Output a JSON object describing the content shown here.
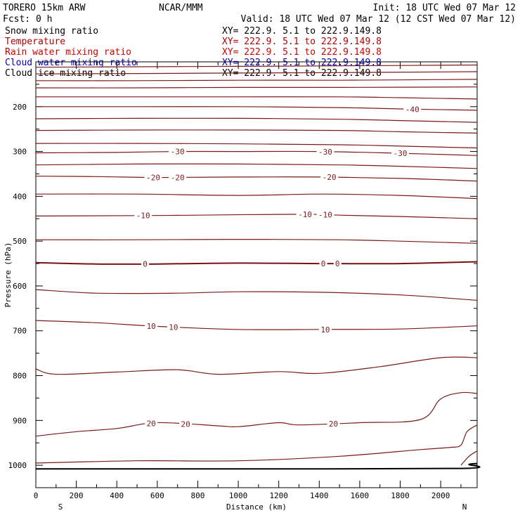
{
  "header": {
    "model": "TORERO  15km ARW",
    "center": "NCAR/MMM",
    "init": "Init: 18 UTC Wed 07 Mar 12",
    "fcst": "Fcst:    0 h",
    "valid": "Valid: 18 UTC Wed 07 Mar 12 (12 CST Wed 07 Mar 12)"
  },
  "legend": [
    {
      "label": "Snow mixing ratio",
      "xy": "XY= 222.9.  5.1 to 222.9.149.8",
      "color": "#000000"
    },
    {
      "label": "Temperature",
      "xy": "XY= 222.9.  5.1 to 222.9.149.8",
      "color": "#b00000"
    },
    {
      "label": "Rain water mixing ratio",
      "xy": "XY= 222.9.  5.1 to 222.9.149.8",
      "color": "#d00000"
    },
    {
      "label": "Cloud water mixing ratio",
      "xy": "XY= 222.9.  5.1 to 222.9.149.8",
      "color": "#0000c0"
    },
    {
      "label": "Cloud ice mixing ratio",
      "xy": "XY= 222.9.  5.1 to 222.9.149.8",
      "color": "#000000"
    }
  ],
  "colors": {
    "contour": "#7a1a1a",
    "zero_contour": "#7a1010",
    "ground": "#000000",
    "axes": "#000000"
  },
  "chart_data": {
    "type": "line",
    "title": "",
    "xlabel": "Distance (km)",
    "ylabel": "Pressure (hPa)",
    "xlim": [
      0,
      2180
    ],
    "ylim": [
      1050,
      100
    ],
    "x_ticks": [
      0,
      200,
      400,
      600,
      800,
      1000,
      1200,
      1400,
      1600,
      1800,
      2000
    ],
    "y_ticks": [
      200,
      300,
      400,
      500,
      600,
      700,
      800,
      900,
      1000
    ],
    "x_endpoint_labels": {
      "left": "S",
      "right": "N"
    },
    "series": [
      {
        "x": [
          0,
          500,
          1000,
          1500,
          2180
        ],
        "y": [
          112,
          111,
          110,
          109,
          107
        ]
      },
      {
        "x": [
          0,
          500,
          1000,
          1500,
          2180
        ],
        "y": [
          127,
          126,
          125,
          124,
          122
        ]
      },
      {
        "x": [
          0,
          500,
          1000,
          1500,
          2180
        ],
        "y": [
          142,
          142,
          141,
          141,
          139
        ]
      },
      {
        "x": [
          0,
          500,
          1000,
          1500,
          2180
        ],
        "y": [
          158,
          158,
          157,
          157,
          156
        ]
      },
      {
        "x": [
          0,
          500,
          1000,
          1500,
          1800,
          2180
        ],
        "y": [
          178,
          178,
          178,
          178,
          180,
          183
        ]
      },
      {
        "x": [
          0,
          500,
          1000,
          1500,
          1800,
          2180
        ],
        "y": [
          200,
          200,
          200,
          202,
          205,
          208
        ],
        "labels": [
          {
            "x": 1860,
            "text": "-40"
          }
        ]
      },
      {
        "x": [
          0,
          500,
          1000,
          1500,
          1800,
          2180
        ],
        "y": [
          227,
          226,
          226,
          228,
          231,
          235
        ]
      },
      {
        "x": [
          0,
          500,
          1000,
          1500,
          1800,
          2180
        ],
        "y": [
          253,
          252,
          252,
          253,
          256,
          259
        ]
      },
      {
        "x": [
          0,
          500,
          1000,
          1500,
          1800,
          2180
        ],
        "y": [
          282,
          282,
          283,
          285,
          288,
          292
        ]
      },
      {
        "x": [
          0,
          400,
          700,
          1000,
          1400,
          1800,
          2180
        ],
        "y": [
          303,
          302,
          300,
          300,
          300,
          304,
          309
        ],
        "labels": [
          {
            "x": 700,
            "text": "-30"
          },
          {
            "x": 1430,
            "text": "-30"
          },
          {
            "x": 1800,
            "text": "-30"
          }
        ]
      },
      {
        "x": [
          0,
          500,
          1000,
          1500,
          1800,
          2180
        ],
        "y": [
          330,
          328,
          328,
          330,
          333,
          338
        ]
      },
      {
        "x": [
          0,
          300,
          600,
          1000,
          1400,
          1800,
          2180
        ],
        "y": [
          355,
          356,
          358,
          357,
          357,
          360,
          366
        ],
        "labels": [
          {
            "x": 580,
            "text": "-20"
          },
          {
            "x": 700,
            "text": "-20"
          },
          {
            "x": 1450,
            "text": "-20"
          }
        ]
      },
      {
        "x": [
          0,
          500,
          1000,
          1400,
          1800,
          2180
        ],
        "y": [
          395,
          395,
          398,
          395,
          398,
          405
        ]
      },
      {
        "x": [
          0,
          500,
          800,
          1300,
          1500,
          1800,
          2180
        ],
        "y": [
          444,
          443,
          442,
          440,
          442,
          445,
          450
        ],
        "labels": [
          {
            "x": 530,
            "text": "-10"
          },
          {
            "x": 1330,
            "text": "-10"
          },
          {
            "x": 1430,
            "text": "-10"
          }
        ]
      },
      {
        "x": [
          0,
          500,
          1000,
          1500,
          1800,
          2180
        ],
        "y": [
          497,
          497,
          496,
          497,
          500,
          505
        ]
      },
      {
        "x": [
          0,
          300,
          600,
          1000,
          1400,
          1800,
          2180
        ],
        "y": [
          548,
          551,
          551,
          549,
          550,
          550,
          546
        ],
        "zero": true,
        "labels": [
          {
            "x": 540,
            "text": "0"
          },
          {
            "x": 1420,
            "text": "0"
          },
          {
            "x": 1490,
            "text": "0"
          }
        ]
      },
      {
        "x": [
          0,
          300,
          700,
          1000,
          1400,
          1800,
          2180
        ],
        "y": [
          608,
          616,
          616,
          613,
          614,
          620,
          632
        ]
      },
      {
        "x": [
          0,
          300,
          600,
          1000,
          1400,
          1800,
          2180
        ],
        "y": [
          677,
          682,
          690,
          697,
          697,
          696,
          689
        ],
        "labels": [
          {
            "x": 570,
            "text": "10"
          },
          {
            "x": 680,
            "text": "10"
          },
          {
            "x": 1430,
            "text": "10"
          }
        ]
      },
      {
        "x": [
          0,
          100,
          400,
          700,
          900,
          1200,
          1400,
          1700,
          2000,
          2180
        ],
        "y": [
          785,
          797,
          792,
          787,
          797,
          791,
          795,
          780,
          760,
          760
        ]
      },
      {
        "x": [
          0,
          200,
          400,
          600,
          900,
          1000,
          1200,
          1300,
          1600,
          1900,
          2000,
          2100,
          2180
        ],
        "y": [
          935,
          925,
          918,
          905,
          912,
          914,
          905,
          910,
          905,
          898,
          852,
          838,
          840
        ],
        "labels": [
          {
            "x": 570,
            "text": "20"
          },
          {
            "x": 740,
            "text": "20"
          },
          {
            "x": 1470,
            "text": "20"
          }
        ]
      },
      {
        "x": [
          0,
          500,
          1000,
          1500,
          1900,
          2050,
          2100,
          2130,
          2180
        ],
        "y": [
          995,
          990,
          990,
          980,
          965,
          960,
          955,
          925,
          910
        ]
      },
      {
        "x": [
          2100,
          2140,
          2180
        ],
        "y": [
          1000,
          980,
          968
        ]
      }
    ],
    "ground": {
      "x": [
        0,
        1000,
        2100,
        2140,
        2180
      ],
      "y": [
        1008,
        1008,
        1007,
        998,
        996
      ]
    }
  }
}
